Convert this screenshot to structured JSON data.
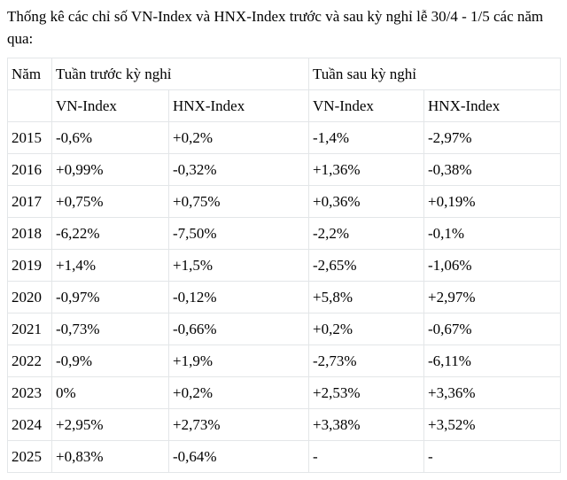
{
  "title": "Thống kê các chỉ số VN-Index và HNX-Index trước và sau kỳ nghỉ lễ 30/4 - 1/5 các năm qua:",
  "table": {
    "header": {
      "year": "Năm",
      "before_holiday": "Tuần trước kỳ nghỉ",
      "after_holiday": "Tuần sau kỳ nghỉ",
      "sub_columns": [
        "VN-Index",
        "HNX-Index",
        "VN-Index",
        "HNX-Index"
      ]
    },
    "rows": [
      {
        "year": "2015",
        "values": [
          "-0,6%",
          "+0,2%",
          "-1,4%",
          "-2,97%"
        ]
      },
      {
        "year": "2016",
        "values": [
          "+0,99%",
          "-0,32%",
          "+1,36%",
          "-0,38%"
        ]
      },
      {
        "year": "2017",
        "values": [
          "+0,75%",
          "+0,75%",
          "+0,36%",
          "+0,19%"
        ]
      },
      {
        "year": "2018",
        "values": [
          "-6,22%",
          "-7,50%",
          "-2,2%",
          "-0,1%"
        ]
      },
      {
        "year": "2019",
        "values": [
          "+1,4%",
          "+1,5%",
          "-2,65%",
          "-1,06%"
        ]
      },
      {
        "year": "2020",
        "values": [
          "-0,97%",
          "-0,12%",
          "+5,8%",
          "+2,97%"
        ]
      },
      {
        "year": "2021",
        "values": [
          "-0,73%",
          "-0,66%",
          "+0,2%",
          "-0,67%"
        ]
      },
      {
        "year": "2022",
        "values": [
          "-0,9%",
          "+1,9%",
          "-2,73%",
          "-6,11%"
        ]
      },
      {
        "year": "2023",
        "values": [
          "0%",
          "+0,2%",
          "+2,53%",
          "+3,36%"
        ]
      },
      {
        "year": "2024",
        "values": [
          "+2,95%",
          "+2,73%",
          "+3,38%",
          "+3,52%"
        ]
      },
      {
        "year": "2025",
        "values": [
          "+0,83%",
          "-0,64%",
          "-",
          "-"
        ]
      }
    ]
  },
  "chart_data": {
    "type": "table",
    "title": "Thống kê các chỉ số VN-Index và HNX-Index trước và sau kỳ nghỉ lễ 30/4 - 1/5 các năm qua:",
    "column_groups": [
      "Năm",
      "Tuần trước kỳ nghỉ",
      "Tuần sau kỳ nghỉ"
    ],
    "columns": [
      "Năm",
      "Tuần trước kỳ nghỉ VN-Index",
      "Tuần trước kỳ nghỉ HNX-Index",
      "Tuần sau kỳ nghỉ VN-Index",
      "Tuần sau kỳ nghỉ HNX-Index"
    ],
    "rows": [
      [
        "2015",
        "-0,6%",
        "+0,2%",
        "-1,4%",
        "-2,97%"
      ],
      [
        "2016",
        "+0,99%",
        "-0,32%",
        "+1,36%",
        "-0,38%"
      ],
      [
        "2017",
        "+0,75%",
        "+0,75%",
        "+0,36%",
        "+0,19%"
      ],
      [
        "2018",
        "-6,22%",
        "-7,50%",
        "-2,2%",
        "-0,1%"
      ],
      [
        "2019",
        "+1,4%",
        "+1,5%",
        "-2,65%",
        "-1,06%"
      ],
      [
        "2020",
        "-0,97%",
        "-0,12%",
        "+5,8%",
        "+2,97%"
      ],
      [
        "2021",
        "-0,73%",
        "-0,66%",
        "+0,2%",
        "-0,67%"
      ],
      [
        "2022",
        "-0,9%",
        "+1,9%",
        "-2,73%",
        "-6,11%"
      ],
      [
        "2023",
        "0%",
        "+0,2%",
        "+2,53%",
        "+3,36%"
      ],
      [
        "2024",
        "+2,95%",
        "+2,73%",
        "+3,38%",
        "+3,52%"
      ],
      [
        "2025",
        "+0,83%",
        "-0,64%",
        "-",
        "-"
      ]
    ]
  },
  "colors": {
    "background": "#ffffff",
    "text": "#000000",
    "table_border": "#e3e6e8"
  }
}
